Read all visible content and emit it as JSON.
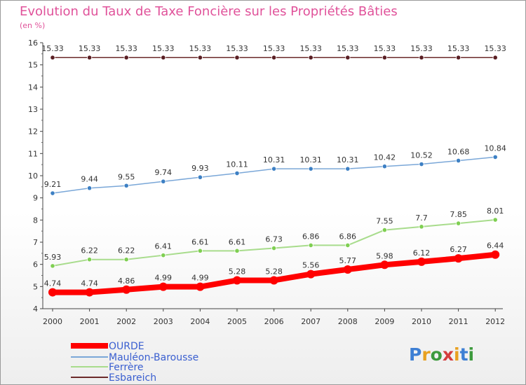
{
  "chart_data": {
    "type": "line",
    "title": "Evolution du Taux de Taxe Foncière sur les Propriétés Bâties",
    "subtitle": "(en %)",
    "x": [
      "2000",
      "2001",
      "2002",
      "2003",
      "2004",
      "2005",
      "2006",
      "2007",
      "2008",
      "2009",
      "2010",
      "2011",
      "2012"
    ],
    "ylim": [
      4,
      16
    ],
    "yticks": [
      "4",
      "5",
      "6",
      "7",
      "8",
      "9",
      "10",
      "11",
      "12",
      "13",
      "14",
      "15",
      "16"
    ],
    "grid": false,
    "legend_position": "bottom-left",
    "series": [
      {
        "name": "Esbareich",
        "color": "#6b2a2a",
        "marker": "#5a1f24",
        "values": [
          15.33,
          15.33,
          15.33,
          15.33,
          15.33,
          15.33,
          15.33,
          15.33,
          15.33,
          15.33,
          15.33,
          15.33,
          15.33
        ],
        "labels": [
          "15.33",
          "15.33",
          "15.33",
          "15.33",
          "15.33",
          "15.33",
          "15.33",
          "15.33",
          "15.33",
          "15.33",
          "15.33",
          "15.33",
          "15.33"
        ]
      },
      {
        "name": "Mauléon-Barousse",
        "color": "#7aa7d8",
        "marker": "#3d80c4",
        "values": [
          9.21,
          9.44,
          9.55,
          9.74,
          9.93,
          10.11,
          10.31,
          10.31,
          10.31,
          10.42,
          10.52,
          10.68,
          10.84
        ],
        "labels": [
          "9.21",
          "9.44",
          "9.55",
          "9.74",
          "9.93",
          "10.11",
          "10.31",
          "10.31",
          "10.31",
          "10.42",
          "10.52",
          "10.68",
          "10.84"
        ]
      },
      {
        "name": "Ferrère",
        "color": "#a8dc8c",
        "marker": "#7fcf52",
        "values": [
          5.93,
          6.22,
          6.22,
          6.41,
          6.61,
          6.61,
          6.73,
          6.86,
          6.86,
          7.55,
          7.7,
          7.85,
          8.01
        ],
        "labels": [
          "5.93",
          "6.22",
          "6.22",
          "6.41",
          "6.61",
          "6.61",
          "6.73",
          "6.86",
          "6.86",
          "7.55",
          "7.7",
          "7.85",
          "8.01"
        ]
      },
      {
        "name": "OURDE",
        "color": "#ff0000",
        "marker": "#ff0000",
        "values": [
          4.74,
          4.74,
          4.86,
          4.99,
          4.99,
          5.28,
          5.28,
          5.56,
          5.77,
          5.98,
          6.12,
          6.27,
          6.44
        ],
        "labels": [
          "4.74",
          "4.74",
          "4.86",
          "4.99",
          "4.99",
          "5.28",
          "5.28",
          "5.56",
          "5.77",
          "5.98",
          "6.12",
          "6.27",
          "6.44"
        ]
      }
    ],
    "legend": [
      "OURDE",
      "Mauléon-Barousse",
      "Ferrère",
      "Esbareich"
    ]
  },
  "logo": {
    "letters": [
      "P",
      "r",
      "o",
      "x",
      "i",
      "t",
      "i"
    ],
    "colors": [
      "#3d7fd4",
      "#e8a020",
      "#3d9a3d",
      "#d43d3d",
      "#e8a020",
      "#3d7fd4",
      "#3d9a3d"
    ]
  }
}
